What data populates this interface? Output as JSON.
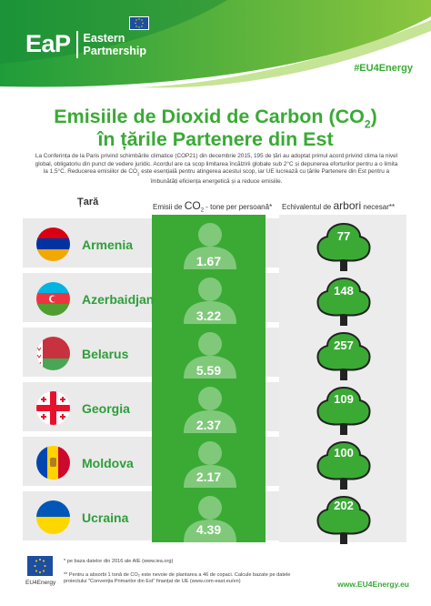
{
  "header": {
    "logo_abbr": "EaP",
    "logo_name_line1": "Eastern",
    "logo_name_line2": "Partnership",
    "hashtag": "#EU4Energy"
  },
  "title": {
    "line1": "Emisiile de Dioxid de Carbon (CO",
    "line1_sub": "2",
    "line1_end": ")",
    "line2": "în țările Partenere din Est"
  },
  "intro": {
    "text1": "La Conferința de la Paris privind schimbările climatice (COP21) din decembrie 2015, 195 de țări au adoptat primul acord privind clima la nivel global, obligatoriu din punct de vedere juridic. Acordul are ca scop limitarea încălzirii globale sub 2°C și depunerea eforturilor pentru a o limita la 1,5°C. Reducerea emisiilor de CO",
    "sub": "2",
    "text2": " este esențială pentru atingerea acestui scop, iar UE lucrează cu țările Partenere din Est pentru a îmbunătăți eficiența energetică și a reduce emisiile."
  },
  "columns": {
    "country": "Țară",
    "co2_pre": "Emisii de ",
    "co2_big": "CO",
    "co2_sub": "2",
    "co2_post": " - tone per persoană*",
    "tree_pre": "Echivalentul de ",
    "tree_big": "arbori",
    "tree_post": " necesar**"
  },
  "rows": [
    {
      "country": "Armenia",
      "co2": "1.67",
      "trees": "77"
    },
    {
      "country": "Azerbaidjan",
      "co2": "3.22",
      "trees": "148"
    },
    {
      "country": "Belarus",
      "co2": "5.59",
      "trees": "257"
    },
    {
      "country": "Georgia",
      "co2": "2.37",
      "trees": "109"
    },
    {
      "country": "Moldova",
      "co2": "2.17",
      "trees": "100"
    },
    {
      "country": "Ucraina",
      "co2": "4.39",
      "trees": "202"
    }
  ],
  "footer": {
    "logo_label": "EU4Energy",
    "note1": "* pe baza datelor din 2016 ale AIE (www.iea.org)",
    "note2": "** Pentru a absorbi 1 tonă de CO₂ este nevoie de plantarea a 46 de copaci. Calcule bazate pe datele proiectului \"Convenția Primarilor din Est\" finanțat de UE (www.com-east.eu/en)",
    "url": "www.EU4Energy.eu"
  },
  "colors": {
    "brand_green": "#3aaa35",
    "country_text": "#2e9e3a",
    "eu_blue": "#1d4ea1"
  }
}
